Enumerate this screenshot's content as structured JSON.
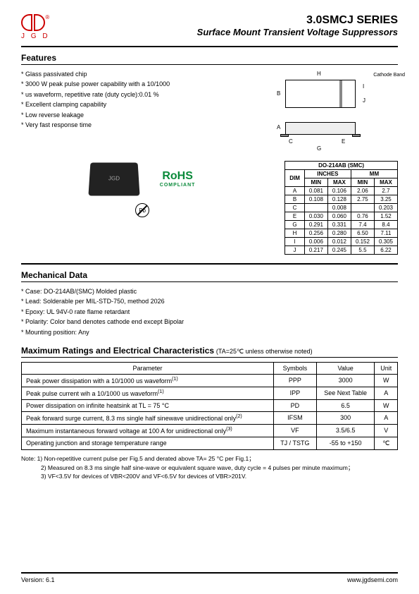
{
  "header": {
    "logo_text": "J G D",
    "series": "3.0SMCJ SERIES",
    "subtitle": "Surface Mount Transient Voltage Suppressors"
  },
  "features": {
    "heading": "Features",
    "items": [
      "Glass passivated chip",
      "3000 W peak pulse power capability with a 10/1000",
      "   us waveform, repetitive rate (duty cycle):0.01 %",
      "Excellent clamping capability",
      "Low reverse leakage",
      "Very fast response time"
    ]
  },
  "diagram": {
    "cathode": "Cathode Band",
    "labels": {
      "H": "H",
      "B": "B",
      "I": "I",
      "J": "J",
      "A": "A",
      "C": "C",
      "E": "E",
      "G": "G"
    }
  },
  "rohs": {
    "main": "RoHS",
    "sub": "COMPLIANT",
    "pb": "Pb"
  },
  "dim_table": {
    "title": "DO-214AB (SMC)",
    "headers": {
      "dim": "DIM",
      "inches": "INCHES",
      "mm": "MM",
      "min": "MIN",
      "max": "MAX"
    },
    "rows": [
      {
        "d": "A",
        "imin": "0.081",
        "imax": "0.106",
        "mmin": "2.06",
        "mmax": "2.7"
      },
      {
        "d": "B",
        "imin": "0.108",
        "imax": "0.128",
        "mmin": "2.75",
        "mmax": "3.25"
      },
      {
        "d": "C",
        "imin": "",
        "imax": "0.008",
        "mmin": "",
        "mmax": "0.203"
      },
      {
        "d": "E",
        "imin": "0.030",
        "imax": "0.060",
        "mmin": "0.76",
        "mmax": "1.52"
      },
      {
        "d": "G",
        "imin": "0.291",
        "imax": "0.331",
        "mmin": "7.4",
        "mmax": "8.4"
      },
      {
        "d": "H",
        "imin": "0.256",
        "imax": "0.280",
        "mmin": "6.50",
        "mmax": "7.11"
      },
      {
        "d": "I",
        "imin": "0.006",
        "imax": "0.012",
        "mmin": "0.152",
        "mmax": "0.305"
      },
      {
        "d": "J",
        "imin": "0.217",
        "imax": "0.245",
        "mmin": "5.5",
        "mmax": "6.22"
      }
    ]
  },
  "mechanical": {
    "heading": "Mechanical Data",
    "items": [
      "Case: DO-214AB/(SMC) Molded plastic",
      "Lead: Solderable per MIL-STD-750, method 2026",
      "Epoxy: UL 94V-0 rate flame retardant",
      "Polarity: Color band denotes cathode end except Bipolar",
      "Mounting position: Any"
    ]
  },
  "ratings": {
    "heading": "Maximum Ratings and Electrical Characteristics",
    "condition": "(TA=25℃ unless otherwise noted)",
    "headers": {
      "param": "Parameter",
      "symbol": "Symbols",
      "value": "Value",
      "unit": "Unit"
    },
    "rows": [
      {
        "p": "Peak power dissipation with a 10/1000 us waveform",
        "note": "(1)",
        "s": "PPP",
        "v": "3000",
        "u": "W"
      },
      {
        "p": "Peak pulse current wih a 10/1000 us waveform",
        "note": "(1)",
        "s": "IPP",
        "v": "See Next Table",
        "u": "A"
      },
      {
        "p": "Power dissipation on infinite heatsink at TL = 75 °C",
        "note": "",
        "s": "PD",
        "v": "6.5",
        "u": "W"
      },
      {
        "p": "Peak forward surge current, 8.3 ms single half sinewave unidirectional only",
        "note": "(2)",
        "s": "IFSM",
        "v": "300",
        "u": "A"
      },
      {
        "p": "Maximum instantaneous forward voltage at 100 A for unidirectional only",
        "note": "(3)",
        "s": "VF",
        "v": "3.5/6.5",
        "u": "V"
      },
      {
        "p": "Operating junction and storage temperature range",
        "note": "",
        "s": "TJ / TSTG",
        "v": "-55 to +150",
        "u": "℃"
      }
    ]
  },
  "notes": {
    "lead": "Note: 1) Non-repetitive current pulse per Fig.5 and derated above TA= 25 °C per Fig.1；",
    "n2": "2) Measured on 8.3 ms single half sine-wave or equivalent square wave, duty cycle = 4 pulses per minute maximum；",
    "n3": "3) VF<3.5V for devices of VBR<200V and VF<6.5V for devices of VBR>201V."
  },
  "footer": {
    "version": "Version: 6.1",
    "url": "www.jgdsemi.com"
  }
}
